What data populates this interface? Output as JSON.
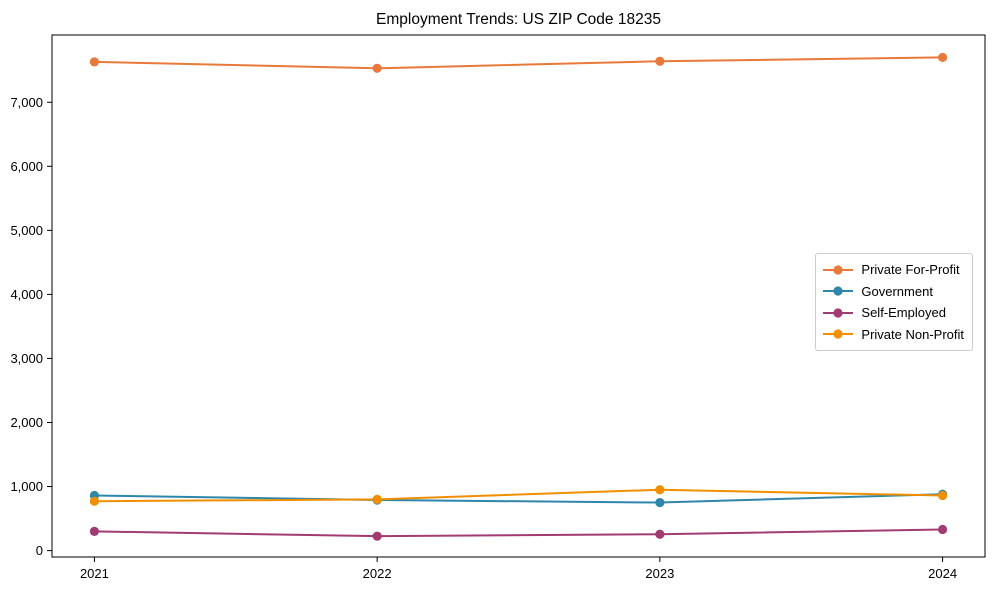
{
  "chart_data": {
    "type": "line",
    "title": "Employment Trends: US ZIP Code 18235",
    "x": [
      2021,
      2022,
      2023,
      2024
    ],
    "x_tick_labels": [
      "2021",
      "2022",
      "2023",
      "2024"
    ],
    "yticks": [
      0,
      1000,
      2000,
      3000,
      4000,
      5000,
      6000,
      7000
    ],
    "y_tick_labels": [
      "0",
      "1,000",
      "2,000",
      "3,000",
      "4,000",
      "5,000",
      "6,000",
      "7,000"
    ],
    "xlim": [
      2020.85,
      2024.15
    ],
    "ylim": [
      -100,
      8050
    ],
    "xlabel": "",
    "ylabel": "",
    "grid": false,
    "legend_position": "center right",
    "background_color": "#ffffff",
    "axis_color": "#000000",
    "series": [
      {
        "name": "Private For-Profit",
        "color": "#E8793B",
        "values": [
          7630,
          7530,
          7640,
          7700
        ]
      },
      {
        "name": "Government",
        "color": "#2E86AB",
        "values": [
          860,
          790,
          750,
          880
        ]
      },
      {
        "name": "Self-Employed",
        "color": "#A23B72",
        "values": [
          300,
          225,
          255,
          330
        ]
      },
      {
        "name": "Private Non-Profit",
        "color": "#F18F01",
        "values": [
          770,
          800,
          950,
          860
        ]
      }
    ]
  }
}
